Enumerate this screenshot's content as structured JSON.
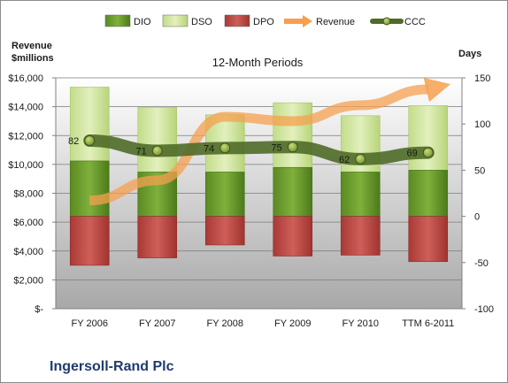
{
  "chart_data": {
    "type": "bar",
    "title": "12-Month Periods",
    "company": "Ingersoll-Rand Plc",
    "left_axis": {
      "label_line1": "Revenue",
      "label_line2": "$millions",
      "ylim": [
        0,
        16000
      ],
      "ticks": [
        0,
        2000,
        4000,
        6000,
        8000,
        10000,
        12000,
        14000,
        16000
      ],
      "tick_labels": [
        "$-",
        "$2,000",
        "$4,000",
        "$6,000",
        "$8,000",
        "$10,000",
        "$12,000",
        "$14,000",
        "$16,000"
      ]
    },
    "right_axis": {
      "label": "Days",
      "ylim": [
        -100,
        150
      ],
      "ticks": [
        -100,
        -50,
        0,
        50,
        100,
        150
      ],
      "tick_labels": [
        "-100",
        "-50",
        "0",
        "50",
        "100",
        "150"
      ]
    },
    "categories": [
      "FY 2006",
      "FY 2007",
      "FY 2008",
      "FY 2009",
      "FY 2010",
      "TTM 6-2011"
    ],
    "legend": {
      "placement": "top",
      "entries": [
        "DIO",
        "DSO",
        "DPO",
        "Revenue",
        "CCC"
      ]
    },
    "series": [
      {
        "name": "DIO",
        "axis": "right",
        "kind": "stacked-bar",
        "values": [
          60,
          48,
          48,
          53,
          48,
          50
        ],
        "color": "#6a9a2a"
      },
      {
        "name": "DSO",
        "axis": "right",
        "kind": "stacked-bar",
        "values": [
          80,
          70,
          62,
          70,
          61,
          70
        ],
        "color": "#c9e08e"
      },
      {
        "name": "DPO",
        "axis": "right",
        "kind": "negative-bar",
        "values": [
          -53,
          -45,
          -31,
          -43,
          -42,
          -49
        ],
        "color": "#c0504d"
      },
      {
        "name": "Revenue",
        "axis": "left",
        "kind": "line",
        "values": [
          7500,
          8900,
          13300,
          13000,
          14100,
          15200
        ],
        "color": "#f5a04f"
      },
      {
        "name": "CCC",
        "axis": "right",
        "kind": "line",
        "values": [
          82,
          71,
          74,
          75,
          62,
          69
        ],
        "labels": [
          "82",
          "71",
          "74",
          "75",
          "62",
          "69"
        ],
        "color": "#4f6b28"
      }
    ]
  }
}
